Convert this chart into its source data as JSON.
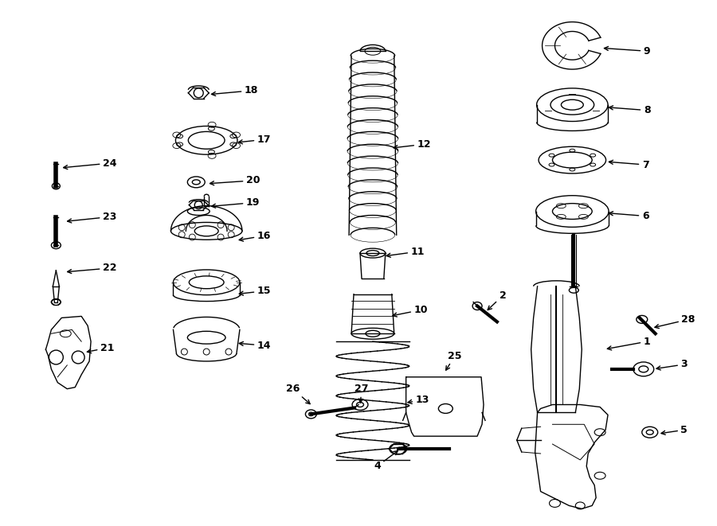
{
  "background_color": "#ffffff",
  "line_color": "#000000",
  "fig_width": 9.0,
  "fig_height": 6.61,
  "dpi": 100,
  "label_fs": 9,
  "lw": 1.0
}
